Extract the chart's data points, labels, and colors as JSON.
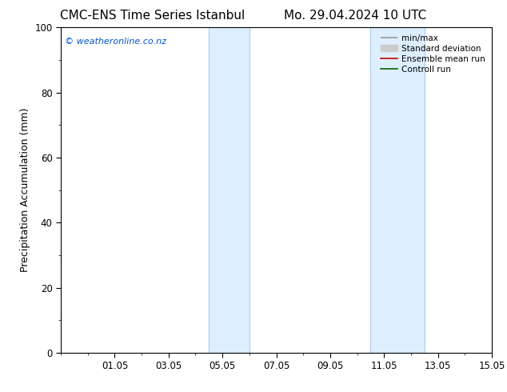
{
  "title_left": "CMC-ENS Time Series Istanbul",
  "title_right": "Mo. 29.04.2024 10 UTC",
  "ylabel": "Precipitation Accumulation (mm)",
  "ylim": [
    0,
    100
  ],
  "yticks": [
    0,
    20,
    40,
    60,
    80,
    100
  ],
  "xtick_labels": [
    "01.05",
    "03.05",
    "05.05",
    "07.05",
    "09.05",
    "11.05",
    "13.05",
    "15.05"
  ],
  "xtick_positions": [
    2,
    4,
    6,
    8,
    10,
    12,
    14,
    16
  ],
  "xlim": [
    0,
    16
  ],
  "band1_xmin": 5.5,
  "band1_xmax": 7.0,
  "band2_xmin": 11.5,
  "band2_xmax": 13.5,
  "shaded_color": "#ddeeff",
  "band_edge_color": "#aaccee",
  "watermark": "© weatheronline.co.nz",
  "watermark_color": "#0055cc",
  "legend_entries": [
    {
      "label": "min/max",
      "color": "#999999",
      "lw": 1.2
    },
    {
      "label": "Standard deviation",
      "color": "#cccccc",
      "lw": 5
    },
    {
      "label": "Ensemble mean run",
      "color": "#cc0000",
      "lw": 1.2
    },
    {
      "label": "Controll run",
      "color": "#006600",
      "lw": 1.2
    }
  ],
  "background_color": "#ffffff",
  "title_fontsize": 11,
  "axis_label_fontsize": 9,
  "tick_fontsize": 8.5,
  "watermark_fontsize": 8,
  "legend_fontsize": 7.5
}
